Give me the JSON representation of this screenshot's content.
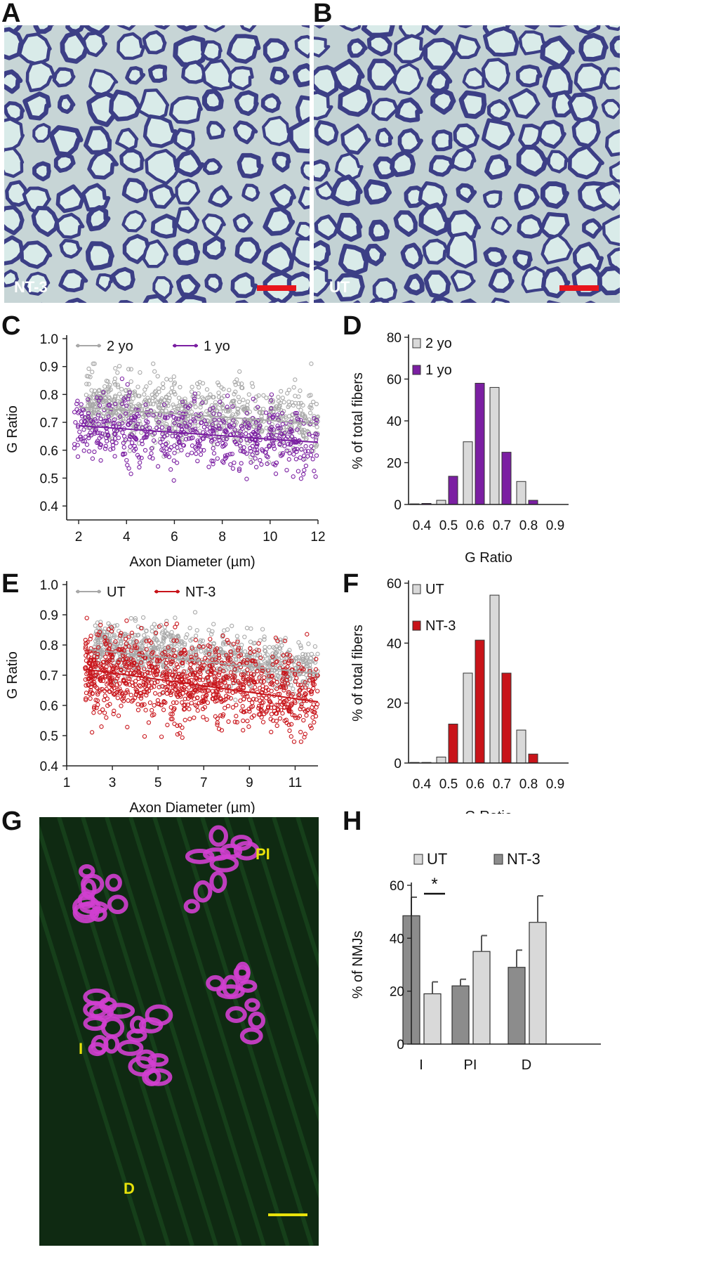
{
  "panels": {
    "A": {
      "letter": "A",
      "label": "NT-3"
    },
    "B": {
      "letter": "B",
      "label": "UT"
    },
    "C": {
      "letter": "C"
    },
    "D": {
      "letter": "D"
    },
    "E": {
      "letter": "E"
    },
    "F": {
      "letter": "F"
    },
    "G": {
      "letter": "G",
      "labels": {
        "i": "I",
        "pi": "PI",
        "d": "D"
      }
    },
    "H": {
      "letter": "H"
    }
  },
  "colors": {
    "gray": "#a8a8a8",
    "purple": "#7b1fa2",
    "red": "#c8141a",
    "light_bar": "#d9d9d9",
    "dark_bar": "#8c8c8c",
    "scale_red": "#e8141c",
    "scale_yellow": "#e8e20a"
  },
  "chart_data": [
    {
      "id": "C",
      "type": "scatter",
      "xlabel": "Axon Diameter (µm)",
      "ylabel": "G Ratio",
      "xlim": [
        1.5,
        12
      ],
      "ylim": [
        0.35,
        1.0
      ],
      "xticks": [
        2,
        4,
        6,
        8,
        10,
        12
      ],
      "yticks": [
        0.4,
        0.5,
        0.6,
        0.7,
        0.8,
        0.9,
        1.0
      ],
      "xtick_labels": [
        "2",
        "4",
        "6",
        "8",
        "10",
        "12"
      ],
      "ytick_labels": [
        "0.4",
        "0.5",
        "0.6",
        "0.7",
        "0.8",
        "0.9",
        "1.0"
      ],
      "series": [
        {
          "name": "2 yo",
          "color": "#a8a8a8",
          "x_range": [
            2.3,
            12
          ],
          "center": 0.74,
          "slope": -0.006,
          "spread": 0.055,
          "count": 850,
          "fit": [
            [
              2,
              0.755
            ],
            [
              12,
              0.695
            ]
          ]
        },
        {
          "name": "1 yo",
          "color": "#7b1fa2",
          "x_range": [
            1.8,
            12
          ],
          "center": 0.66,
          "slope": -0.006,
          "spread": 0.06,
          "count": 600,
          "fit": [
            [
              2,
              0.688
            ],
            [
              12,
              0.628
            ]
          ]
        }
      ]
    },
    {
      "id": "D",
      "type": "bar",
      "xlabel": "G Ratio",
      "ylabel": "% of total fibers",
      "categories": [
        "0.4",
        "0.5",
        "0.6",
        "0.7",
        "0.8",
        "0.9"
      ],
      "ylim": [
        0,
        80
      ],
      "yticks": [
        0,
        20,
        40,
        60,
        80
      ],
      "ytick_labels": [
        "0",
        "20",
        "40",
        "60",
        "80"
      ],
      "series": [
        {
          "name": "2 yo",
          "color": "#d9d9d9",
          "values": [
            0.3,
            2,
            30,
            56,
            11,
            0
          ]
        },
        {
          "name": "1 yo",
          "color": "#7b1fa2",
          "values": [
            0.5,
            13.5,
            58,
            25,
            2,
            0
          ]
        }
      ]
    },
    {
      "id": "E",
      "type": "scatter",
      "xlabel": "Axon Diameter (µm)",
      "ylabel": "G Ratio",
      "xlim": [
        1,
        12
      ],
      "ylim": [
        0.4,
        1.0
      ],
      "xticks": [
        1,
        3,
        5,
        7,
        9,
        11
      ],
      "yticks": [
        0.4,
        0.5,
        0.6,
        0.7,
        0.8,
        0.9,
        1.0
      ],
      "xtick_labels": [
        "1",
        "3",
        "5",
        "7",
        "9",
        "11"
      ],
      "ytick_labels": [
        "0.4",
        "0.5",
        "0.6",
        "0.7",
        "0.8",
        "0.9",
        "1.0"
      ],
      "series": [
        {
          "name": "UT",
          "color": "#a8a8a8",
          "x_range": [
            2.2,
            12
          ],
          "center": 0.77,
          "slope": -0.008,
          "spread": 0.045,
          "count": 850,
          "fit": [
            [
              2,
              0.785
            ],
            [
              12,
              0.705
            ]
          ]
        },
        {
          "name": "NT-3",
          "color": "#c8141a",
          "x_range": [
            1.8,
            12
          ],
          "center": 0.68,
          "slope": -0.009,
          "spread": 0.065,
          "count": 1100,
          "fit": [
            [
              1.8,
              0.72
            ],
            [
              12,
              0.612
            ]
          ]
        }
      ]
    },
    {
      "id": "F",
      "type": "bar",
      "xlabel": "G Ratio",
      "ylabel": "% of total fibers",
      "categories": [
        "0.4",
        "0.5",
        "0.6",
        "0.7",
        "0.8",
        "0.9"
      ],
      "ylim": [
        0,
        60
      ],
      "yticks": [
        0,
        20,
        40,
        60
      ],
      "ytick_labels": [
        "0",
        "20",
        "40",
        "60"
      ],
      "series": [
        {
          "name": "UT",
          "color": "#d9d9d9",
          "values": [
            0.2,
            2,
            30,
            56,
            11,
            0
          ]
        },
        {
          "name": "NT-3",
          "color": "#c8141a",
          "values": [
            0.2,
            13,
            41,
            30,
            3,
            0
          ]
        }
      ]
    },
    {
      "id": "H",
      "type": "bar",
      "xlabel": "",
      "ylabel": "% of NMJs",
      "categories": [
        "I",
        "PI",
        "D"
      ],
      "ylim": [
        0,
        60
      ],
      "yticks": [
        0,
        20,
        40,
        60
      ],
      "ytick_labels": [
        "0",
        "20",
        "40",
        "60"
      ],
      "series": [
        {
          "name": "UT",
          "color": "#d9d9d9",
          "values": [
            19,
            35,
            46
          ],
          "errors": [
            4.5,
            6,
            10
          ]
        },
        {
          "name": "NT-3",
          "color": "#8c8c8c",
          "values": [
            48.5,
            22,
            29
          ],
          "errors": [
            7,
            2.5,
            6.5
          ]
        }
      ],
      "annotations": [
        "*"
      ]
    }
  ]
}
